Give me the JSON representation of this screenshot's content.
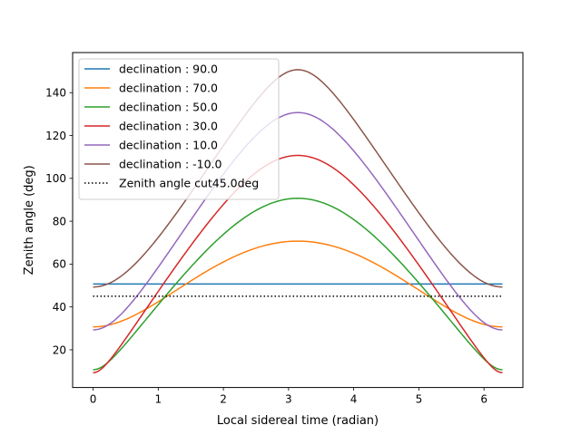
{
  "chart_data": {
    "type": "line",
    "title": "",
    "xlabel": "Local sidereal time (radian)",
    "ylabel": "Zenith angle (deg)",
    "xlim": [
      -0.314,
      6.597
    ],
    "ylim": [
      2.4,
      158.7
    ],
    "xticks": [
      0,
      1,
      2,
      3,
      4,
      5,
      6
    ],
    "yticks": [
      20,
      40,
      60,
      80,
      100,
      120,
      140
    ],
    "x_range": [
      0,
      6.2832
    ],
    "latitude_deg": 39.3,
    "grid": false,
    "legend_position": "top-left",
    "series": [
      {
        "name": "declination : 90.0",
        "declination": 90.0,
        "color": "#1f77b4",
        "style": "solid",
        "values_at_0_pi": [
          50.7,
          50.7
        ],
        "min": 50.7,
        "max": 50.7
      },
      {
        "name": "declination : 70.0",
        "declination": 70.0,
        "color": "#ff7f0e",
        "style": "solid",
        "values_at_0_pi": [
          30.7,
          70.7
        ],
        "min": 30.7,
        "max": 70.7
      },
      {
        "name": "declination : 50.0",
        "declination": 50.0,
        "color": "#2ca02c",
        "style": "solid",
        "values_at_0_pi": [
          10.7,
          90.7
        ],
        "min": 10.7,
        "max": 90.7
      },
      {
        "name": "declination : 30.0",
        "declination": 30.0,
        "color": "#d62728",
        "style": "solid",
        "values_at_0_pi": [
          9.3,
          110.7
        ],
        "min": 9.3,
        "max": 110.7
      },
      {
        "name": "declination : 10.0",
        "declination": 10.0,
        "color": "#9467bd",
        "style": "solid",
        "values_at_0_pi": [
          29.3,
          130.7
        ],
        "min": 29.3,
        "max": 130.7
      },
      {
        "name": "declination : -10.0",
        "declination": -10.0,
        "color": "#8c564b",
        "style": "solid",
        "values_at_0_pi": [
          49.3,
          150.7
        ],
        "min": 49.3,
        "max": 150.7
      },
      {
        "name": "Zenith angle cut45.0deg",
        "color": "#000000",
        "style": "dotted",
        "constant": 45.0
      }
    ]
  }
}
